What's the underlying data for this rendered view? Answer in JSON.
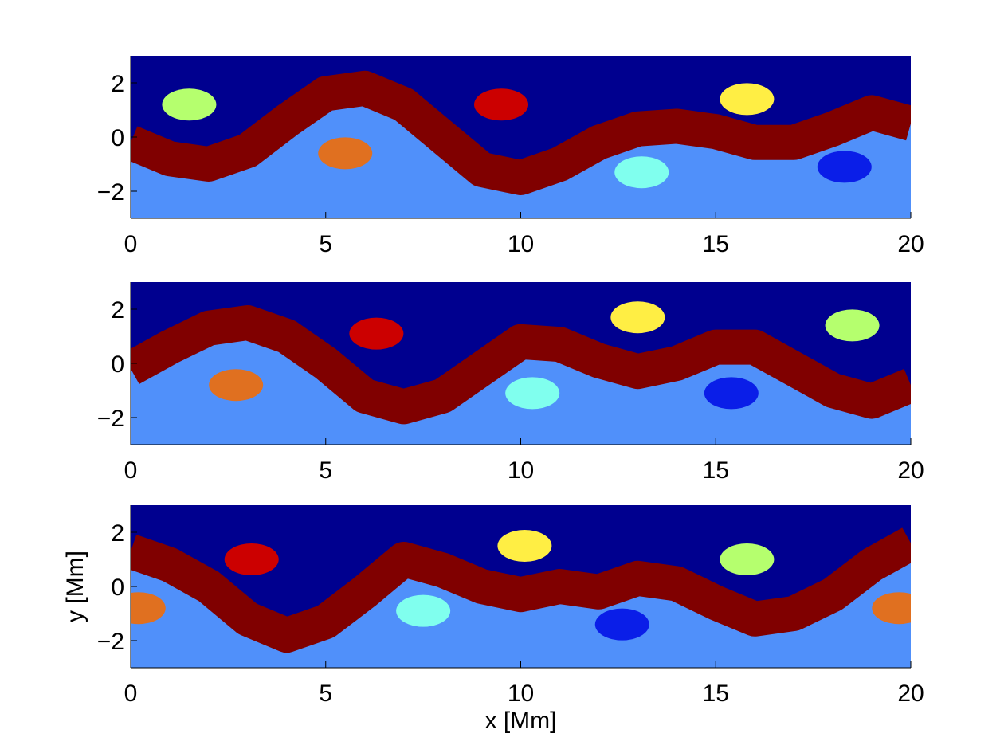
{
  "chart_data": [
    {
      "type": "scatter",
      "xlim": [
        0,
        20
      ],
      "ylim": [
        -3,
        3
      ],
      "xticks": [
        0,
        5,
        10,
        15,
        20
      ],
      "yticks": [
        {
          "value": -2,
          "label": "−2"
        },
        0,
        2
      ],
      "series": [
        {
          "color": "#800000",
          "x": [
            0,
            1,
            2,
            3,
            4,
            5,
            6,
            7,
            8,
            9,
            10,
            11,
            12,
            13,
            14,
            15,
            16,
            17,
            18,
            19,
            20
          ],
          "y": [
            -0.2,
            -0.8,
            -1.0,
            -0.5,
            0.6,
            1.6,
            1.8,
            1.2,
            0,
            -1.2,
            -1.5,
            -1.0,
            -0.2,
            0.3,
            0.4,
            0.2,
            -0.2,
            -0.2,
            0.3,
            0.9,
            0.5
          ]
        },
        {
          "color": "#b5ff6e",
          "x": [
            1.5
          ],
          "y": [
            1.2
          ]
        },
        {
          "color": "#cc0000",
          "x": [
            9.5
          ],
          "y": [
            1.2
          ]
        },
        {
          "color": "#ffee44",
          "x": [
            15.8
          ],
          "y": [
            1.4
          ]
        },
        {
          "color": "#e07020",
          "x": [
            5.5
          ],
          "y": [
            -0.6
          ]
        },
        {
          "color": "#80ffee",
          "x": [
            13.1
          ],
          "y": [
            -1.3
          ]
        },
        {
          "color": "#0a1ee8",
          "x": [
            18.3
          ],
          "y": [
            -1.1
          ]
        }
      ]
    },
    {
      "type": "scatter",
      "xlim": [
        0,
        20
      ],
      "ylim": [
        -3,
        3
      ],
      "xticks": [
        0,
        5,
        10,
        15,
        20
      ],
      "yticks": [
        {
          "value": -2,
          "label": "−2"
        },
        0,
        2
      ],
      "series": [
        {
          "color": "#800000",
          "x": [
            0,
            1,
            2,
            3,
            4,
            5,
            6,
            7,
            8,
            9,
            10,
            11,
            12,
            13,
            14,
            15,
            16,
            17,
            18,
            19,
            20
          ],
          "y": [
            -0.2,
            0.6,
            1.3,
            1.5,
            1.0,
            0,
            -1.2,
            -1.6,
            -1.2,
            -0.2,
            0.8,
            0.7,
            0.1,
            -0.3,
            0,
            0.6,
            0.6,
            -0.2,
            -1.0,
            -1.4,
            -0.8
          ]
        },
        {
          "color": "#cc0000",
          "x": [
            6.3
          ],
          "y": [
            1.1
          ]
        },
        {
          "color": "#ffee44",
          "x": [
            13
          ],
          "y": [
            1.7
          ]
        },
        {
          "color": "#b5ff6e",
          "x": [
            18.5
          ],
          "y": [
            1.4
          ]
        },
        {
          "color": "#e07020",
          "x": [
            2.7
          ],
          "y": [
            -0.8
          ]
        },
        {
          "color": "#80ffee",
          "x": [
            10.3
          ],
          "y": [
            -1.1
          ]
        },
        {
          "color": "#0a1ee8",
          "x": [
            15.4
          ],
          "y": [
            -1.1
          ]
        }
      ]
    },
    {
      "type": "scatter",
      "xlim": [
        0,
        20
      ],
      "ylim": [
        -3,
        3
      ],
      "xticks": [
        0,
        5,
        10,
        15,
        20
      ],
      "yticks": [
        {
          "value": -2,
          "label": "−2"
        },
        0,
        2
      ],
      "xlabel": "x [Mm]",
      "ylabel": "y [Mm]",
      "series": [
        {
          "color": "#800000",
          "x": [
            0,
            1,
            2,
            3,
            4,
            5,
            6,
            7,
            8,
            9,
            10,
            11,
            12,
            13,
            14,
            15,
            16,
            17,
            18,
            19,
            20
          ],
          "y": [
            1.3,
            0.8,
            0,
            -1.2,
            -1.8,
            -1.3,
            -0.2,
            1.0,
            0.6,
            0,
            -0.3,
            0,
            -0.2,
            0.3,
            0.1,
            -0.6,
            -1.2,
            -1.0,
            -0.3,
            0.8,
            1.6
          ]
        },
        {
          "color": "#cc0000",
          "x": [
            3.1
          ],
          "y": [
            1.0
          ]
        },
        {
          "color": "#ffee44",
          "x": [
            10.1
          ],
          "y": [
            1.5
          ]
        },
        {
          "color": "#b5ff6e",
          "x": [
            15.8
          ],
          "y": [
            1.0
          ]
        },
        {
          "color": "#80ffee",
          "x": [
            7.5
          ],
          "y": [
            -0.9
          ]
        },
        {
          "color": "#0a1ee8",
          "x": [
            12.6
          ],
          "y": [
            -1.4
          ]
        },
        {
          "color": "#e07020",
          "x": [
            19.7
          ],
          "y": [
            -0.8
          ]
        },
        {
          "color": "#e07020",
          "x": [
            0.2
          ],
          "y": [
            -0.8
          ]
        }
      ]
    }
  ]
}
